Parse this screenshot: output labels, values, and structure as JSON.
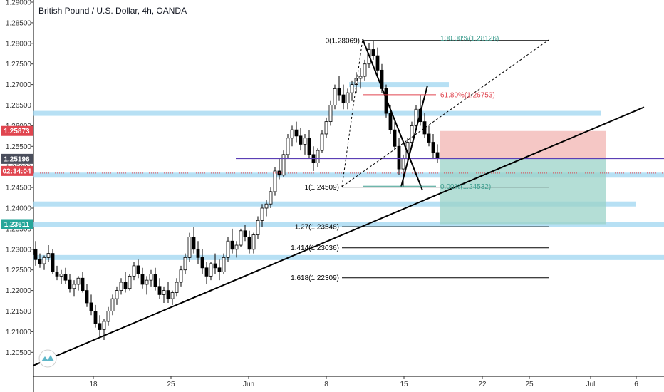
{
  "header": {
    "title": "British Pound / U.S. Dollar, 4h, OANDA"
  },
  "price_badges": {
    "upper": {
      "text": "1.25873",
      "color": "#e0454f"
    },
    "mid": {
      "text": "1.25196",
      "color": "#4a4e5c"
    },
    "timer": {
      "text": "02:34:04",
      "color": "#e0454f"
    },
    "lower": {
      "text": "1.23611",
      "color": "#26a69a"
    }
  },
  "colors": {
    "zone_blue": "#9fd6f0",
    "trend_black": "#000000",
    "fib_green": "#3e9e8f",
    "fib_red": "#e0454f",
    "purple_line": "#5b3fb5",
    "stop_zone": "#f2b9b7",
    "target_zone": "#9bd3c8",
    "candle_up": "#ffffff",
    "candle_down": "#000000"
  },
  "chart_data": {
    "type": "candlestick",
    "title": "British Pound / U.S. Dollar, 4h, OANDA",
    "y_ticks": [
      "1.29000",
      "1.28500",
      "1.28000",
      "1.27500",
      "1.27000",
      "1.26500",
      "1.26000",
      "1.25500",
      "1.25000",
      "1.24500",
      "1.24000",
      "1.23500",
      "1.23000",
      "1.22500",
      "1.22000",
      "1.21500",
      "1.21000",
      "1.20500"
    ],
    "x_ticks": [
      "18",
      "25",
      "Jun",
      "8",
      "15",
      "22",
      "25",
      "Jul",
      "6"
    ],
    "ylim": [
      1.2,
      1.29
    ],
    "horizontal_zones": [
      1.263,
      1.27,
      1.248,
      1.241,
      1.2361,
      1.228
    ],
    "fib_levels": [
      {
        "label": "0(1.28069)",
        "value": 1.28069
      },
      {
        "label": "1(1.24509)",
        "value": 1.24509
      },
      {
        "label": "1.27(1.23548)",
        "value": 1.23548
      },
      {
        "label": "1.414(1.23036)",
        "value": 1.23036
      },
      {
        "label": "1.618(1.22309)",
        "value": 1.22309
      },
      {
        "label": "100.00%(1.28126)",
        "value": 1.28126
      },
      {
        "label": "61.80%(1.26753)",
        "value": 1.26753
      },
      {
        "label": "0.00%(1.24532)",
        "value": 1.24532
      }
    ],
    "current_price": 1.25196,
    "trend_line": {
      "from": 1.2018,
      "to": 1.2645
    },
    "candles": [
      [
        1.23,
        1.232,
        1.226,
        1.2275
      ],
      [
        1.2275,
        1.229,
        1.2255,
        1.2265
      ],
      [
        1.2265,
        1.2285,
        1.225,
        1.228
      ],
      [
        1.228,
        1.231,
        1.227,
        1.229
      ],
      [
        1.229,
        1.23,
        1.224,
        1.2245
      ],
      [
        1.2245,
        1.226,
        1.2225,
        1.2235
      ],
      [
        1.2235,
        1.225,
        1.2215,
        1.224
      ],
      [
        1.224,
        1.2255,
        1.2215,
        1.2225
      ],
      [
        1.2225,
        1.224,
        1.2195,
        1.2205
      ],
      [
        1.2205,
        1.2225,
        1.2185,
        1.2215
      ],
      [
        1.2215,
        1.2235,
        1.22,
        1.223
      ],
      [
        1.223,
        1.2245,
        1.2195,
        1.22
      ],
      [
        1.22,
        1.2215,
        1.216,
        1.217
      ],
      [
        1.217,
        1.219,
        1.214,
        1.215
      ],
      [
        1.215,
        1.2165,
        1.211,
        1.212
      ],
      [
        1.212,
        1.214,
        1.2085,
        1.2105
      ],
      [
        1.2105,
        1.213,
        1.208,
        1.2125
      ],
      [
        1.2125,
        1.216,
        1.2115,
        1.215
      ],
      [
        1.215,
        1.219,
        1.214,
        1.218
      ],
      [
        1.218,
        1.221,
        1.2165,
        1.22
      ],
      [
        1.22,
        1.223,
        1.219,
        1.222
      ],
      [
        1.222,
        1.2245,
        1.2195,
        1.2205
      ],
      [
        1.2205,
        1.224,
        1.22,
        1.2235
      ],
      [
        1.2235,
        1.227,
        1.2225,
        1.226
      ],
      [
        1.226,
        1.2275,
        1.223,
        1.224
      ],
      [
        1.224,
        1.2255,
        1.2205,
        1.2215
      ],
      [
        1.2215,
        1.2235,
        1.219,
        1.2225
      ],
      [
        1.2225,
        1.225,
        1.221,
        1.224
      ],
      [
        1.224,
        1.2255,
        1.22,
        1.221
      ],
      [
        1.221,
        1.223,
        1.218,
        1.219
      ],
      [
        1.219,
        1.221,
        1.217,
        1.22
      ],
      [
        1.22,
        1.222,
        1.217,
        1.218
      ],
      [
        1.218,
        1.22,
        1.2165,
        1.2195
      ],
      [
        1.2195,
        1.223,
        1.2185,
        1.222
      ],
      [
        1.222,
        1.226,
        1.221,
        1.225
      ],
      [
        1.225,
        1.229,
        1.224,
        1.228
      ],
      [
        1.228,
        1.234,
        1.227,
        1.233
      ],
      [
        1.233,
        1.2355,
        1.229,
        1.23
      ],
      [
        1.23,
        1.232,
        1.2265,
        1.228
      ],
      [
        1.228,
        1.23,
        1.224,
        1.2255
      ],
      [
        1.2255,
        1.227,
        1.2215,
        1.2235
      ],
      [
        1.2235,
        1.227,
        1.2225,
        1.2265
      ],
      [
        1.2265,
        1.229,
        1.224,
        1.2255
      ],
      [
        1.2255,
        1.2275,
        1.2225,
        1.2245
      ],
      [
        1.2245,
        1.229,
        1.224,
        1.228
      ],
      [
        1.228,
        1.233,
        1.227,
        1.232
      ],
      [
        1.232,
        1.235,
        1.229,
        1.23
      ],
      [
        1.23,
        1.232,
        1.228,
        1.231
      ],
      [
        1.231,
        1.235,
        1.2305,
        1.2345
      ],
      [
        1.2345,
        1.236,
        1.232,
        1.233
      ],
      [
        1.233,
        1.2345,
        1.229,
        1.23
      ],
      [
        1.23,
        1.234,
        1.229,
        1.2335
      ],
      [
        1.2335,
        1.238,
        1.2325,
        1.237
      ],
      [
        1.237,
        1.241,
        1.2355,
        1.24
      ],
      [
        1.24,
        1.242,
        1.238,
        1.241
      ],
      [
        1.241,
        1.245,
        1.24,
        1.244
      ],
      [
        1.244,
        1.25,
        1.243,
        1.249
      ],
      [
        1.249,
        1.252,
        1.247,
        1.248
      ],
      [
        1.248,
        1.254,
        1.2475,
        1.253
      ],
      [
        1.253,
        1.258,
        1.252,
        1.257
      ],
      [
        1.257,
        1.26,
        1.255,
        1.259
      ],
      [
        1.259,
        1.261,
        1.256,
        1.2575
      ],
      [
        1.2575,
        1.2595,
        1.254,
        1.2555
      ],
      [
        1.2555,
        1.258,
        1.253,
        1.257
      ],
      [
        1.257,
        1.259,
        1.252,
        1.253
      ],
      [
        1.253,
        1.255,
        1.249,
        1.251
      ],
      [
        1.251,
        1.2545,
        1.25,
        1.254
      ],
      [
        1.254,
        1.259,
        1.2535,
        1.258
      ],
      [
        1.258,
        1.262,
        1.257,
        1.261
      ],
      [
        1.261,
        1.266,
        1.26,
        1.265
      ],
      [
        1.265,
        1.27,
        1.264,
        1.269
      ],
      [
        1.269,
        1.272,
        1.266,
        1.2675
      ],
      [
        1.2675,
        1.27,
        1.264,
        1.2655
      ],
      [
        1.2655,
        1.269,
        1.264,
        1.268
      ],
      [
        1.268,
        1.271,
        1.266,
        1.27
      ],
      [
        1.27,
        1.273,
        1.268,
        1.2715
      ],
      [
        1.2715,
        1.274,
        1.269,
        1.272
      ],
      [
        1.272,
        1.276,
        1.271,
        1.275
      ],
      [
        1.275,
        1.28,
        1.274,
        1.2785
      ],
      [
        1.2785,
        1.2807,
        1.276,
        1.277
      ],
      [
        1.277,
        1.279,
        1.272,
        1.2735
      ],
      [
        1.2735,
        1.275,
        1.268,
        1.269
      ],
      [
        1.269,
        1.27,
        1.262,
        1.263
      ],
      [
        1.263,
        1.265,
        1.258,
        1.259
      ],
      [
        1.259,
        1.261,
        1.254,
        1.255
      ],
      [
        1.255,
        1.257,
        1.248,
        1.2495
      ],
      [
        1.2495,
        1.253,
        1.2451,
        1.252
      ],
      [
        1.252,
        1.257,
        1.251,
        1.256
      ],
      [
        1.256,
        1.261,
        1.255,
        1.26
      ],
      [
        1.26,
        1.265,
        1.259,
        1.264
      ],
      [
        1.264,
        1.2675,
        1.26,
        1.261
      ],
      [
        1.261,
        1.263,
        1.257,
        1.258
      ],
      [
        1.258,
        1.26,
        1.255,
        1.256
      ],
      [
        1.256,
        1.258,
        1.252,
        1.2535
      ],
      [
        1.2535,
        1.2555,
        1.251,
        1.252
      ]
    ]
  }
}
